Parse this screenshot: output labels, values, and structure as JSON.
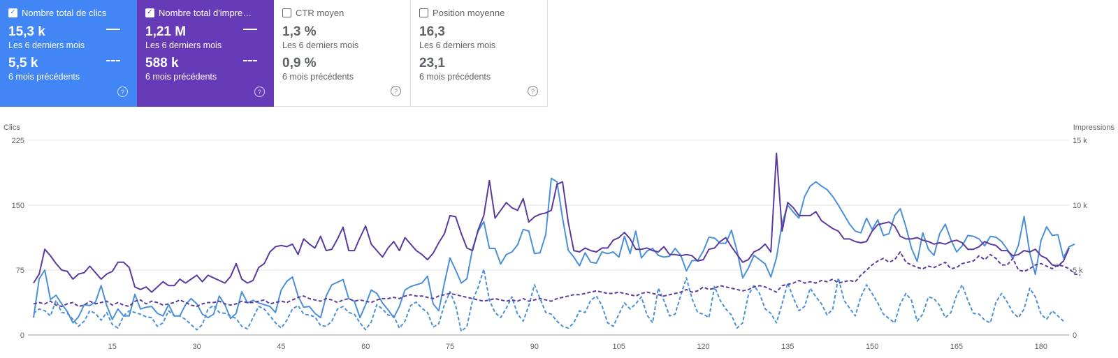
{
  "cards": [
    {
      "title": "Nombre total de clics",
      "checked": true,
      "value1": "15,3 k",
      "label1": "Les 6 derniers mois",
      "value2": "5,5 k",
      "label2": "6 mois précédents",
      "help": "?",
      "theme": "#4285f4"
    },
    {
      "title": "Nombre total d'impre…",
      "checked": true,
      "value1": "1,21 M",
      "label1": "Les 6 derniers mois",
      "value2": "588 k",
      "label2": "6 mois précédents",
      "help": "?",
      "theme": "#673ab7"
    },
    {
      "title": "CTR moyen",
      "checked": false,
      "value1": "1,3 %",
      "label1": "Les 6 derniers mois",
      "value2": "0,9 %",
      "label2": "6 mois précédents",
      "help": "?",
      "theme": "#ffffff"
    },
    {
      "title": "Position moyenne",
      "checked": false,
      "value1": "16,3",
      "label1": "Les 6 derniers mois",
      "value2": "23,1",
      "label2": "6 mois précédents",
      "help": "?",
      "theme": "#ffffff"
    }
  ],
  "chart_data": {
    "type": "line",
    "left_axis_label": "Clics",
    "right_axis_label": "Impressions",
    "left_ticks": [
      "0",
      "75",
      "150",
      "225"
    ],
    "right_ticks": [
      "0",
      "5 k",
      "10 k",
      "15 k"
    ],
    "x_ticks": [
      "15",
      "30",
      "45",
      "60",
      "75",
      "90",
      "105",
      "120",
      "135",
      "150",
      "165",
      "180"
    ],
    "ylim_left": [
      0,
      225
    ],
    "ylim_right": [
      0,
      15000
    ],
    "x_range": [
      1,
      184
    ],
    "colors": {
      "clicks": "#4a90d9",
      "impressions": "#5b3a9e"
    },
    "series": [
      {
        "axis": "left",
        "dashed": false,
        "color": "#4a90d9",
        "values": [
          20,
          65,
          75,
          41,
          46,
          36,
          27,
          14,
          21,
          35,
          34,
          38,
          57,
          34,
          18,
          30,
          22,
          22,
          47,
          30,
          32,
          33,
          25,
          22,
          35,
          22,
          22,
          35,
          42,
          36,
          24,
          20,
          24,
          45,
          35,
          19,
          25,
          50,
          37,
          40,
          37,
          35,
          33,
          26,
          52,
          62,
          67,
          45,
          32,
          33,
          25,
          20,
          45,
          58,
          61,
          64,
          42,
          39,
          20,
          35,
          52,
          48,
          37,
          29,
          20,
          33,
          52,
          56,
          58,
          60,
          68,
          36,
          28,
          60,
          89,
          75,
          60,
          65,
          100,
          120,
          131,
          100,
          100,
          82,
          93,
          96,
          104,
          122,
          120,
          94,
          95,
          116,
          181,
          177,
          135,
          98,
          90,
          80,
          95,
          84,
          83,
          96,
          94,
          96,
          90,
          114,
          94,
          120,
          89,
          97,
          100,
          92,
          90,
          91,
          100,
          92,
          74,
          86,
          86,
          97,
          113,
          112,
          106,
          106,
          121,
          97,
          66,
          77,
          92,
          87,
          82,
          67,
          89,
          129,
          150,
          142,
          135,
          160,
          172,
          177,
          172,
          168,
          160,
          150,
          139,
          128,
          120,
          118,
          135,
          122,
          133,
          115,
          117,
          138,
          146,
          125,
          100,
          85,
          118,
          99,
          92,
          117,
          128,
          110,
          96,
          103,
          115,
          114,
          111,
          103,
          114,
          113,
          108,
          99,
          88,
          104,
          137,
          95,
          70,
          109,
          125,
          115,
          116,
          89,
          102,
          105
        ]
      },
      {
        "axis": "right",
        "dashed": false,
        "color": "#5b3a9e",
        "values": [
          4000,
          4700,
          6600,
          6100,
          5500,
          5000,
          4900,
          4300,
          4700,
          4800,
          5300,
          4800,
          4300,
          4700,
          4900,
          5600,
          5600,
          5200,
          3700,
          3500,
          3700,
          3300,
          3700,
          4100,
          3800,
          3800,
          4300,
          4000,
          4300,
          4600,
          4100,
          4600,
          4400,
          4200,
          4000,
          4500,
          5500,
          4300,
          4000,
          4200,
          5200,
          5500,
          6400,
          6800,
          6900,
          6800,
          7000,
          6200,
          7400,
          7000,
          6700,
          7600,
          6500,
          6600,
          7400,
          8300,
          6500,
          6500,
          7500,
          8400,
          7000,
          6500,
          6000,
          6700,
          7200,
          6500,
          7500,
          7000,
          6500,
          6200,
          5800,
          6300,
          7100,
          7800,
          9200,
          9100,
          7800,
          6700,
          6500,
          8100,
          9200,
          11900,
          9000,
          9600,
          10200,
          9800,
          9600,
          10500,
          8700,
          9100,
          9300,
          9400,
          9600,
          11600,
          11800,
          8700,
          6500,
          6400,
          6700,
          6500,
          6400,
          6700,
          6700,
          7300,
          7500,
          7900,
          7400,
          6600,
          6600,
          6700,
          6500,
          6400,
          6800,
          6200,
          6200,
          6100,
          6200,
          6100,
          5700,
          5800,
          6600,
          6700,
          7200,
          7500,
          6800,
          6200,
          5600,
          5800,
          6400,
          6600,
          7000,
          6400,
          14000,
          8000,
          10200,
          9800,
          9200,
          9200,
          9200,
          9500,
          8800,
          8500,
          8200,
          8000,
          7400,
          7400,
          7200,
          7100,
          7200,
          8000,
          8500,
          8600,
          8700,
          8400,
          7600,
          7400,
          7400,
          7500,
          7300,
          7200,
          7000,
          7100,
          7000,
          7200,
          7300,
          7100,
          6600,
          6600,
          6800,
          7200,
          7000,
          6900,
          6500,
          6500,
          6100,
          6200,
          6500,
          6400,
          6600,
          6100,
          5900,
          5400,
          5300,
          5700,
          6700
        ]
      },
      {
        "axis": "left",
        "dashed": true,
        "color": "#4a90d9",
        "values": [
          25,
          30,
          28,
          22,
          40,
          26,
          25,
          18,
          10,
          16,
          28,
          25,
          17,
          26,
          12,
          8,
          22,
          28,
          26,
          24,
          21,
          20,
          10,
          14,
          28,
          22,
          22,
          18,
          12,
          6,
          12,
          30,
          34,
          26,
          25,
          22,
          19,
          10,
          7,
          20,
          33,
          30,
          22,
          14,
          8,
          17,
          30,
          34,
          24,
          23,
          21,
          11,
          10,
          16,
          30,
          33,
          26,
          24,
          14,
          6,
          15,
          35,
          30,
          23,
          22,
          8,
          16,
          34,
          38,
          31,
          26,
          9,
          13,
          35,
          50,
          34,
          4,
          10,
          40,
          55,
          76,
          40,
          26,
          20,
          31,
          44,
          24,
          16,
          34,
          58,
          42,
          26,
          24,
          16,
          10,
          8,
          14,
          28,
          26,
          40,
          45,
          34,
          14,
          10,
          24,
          37,
          30,
          36,
          44,
          23,
          14,
          54,
          40,
          22,
          24,
          46,
          66,
          42,
          26,
          24,
          20,
          56,
          40,
          30,
          23,
          8,
          14,
          46,
          57,
          48,
          30,
          25,
          14,
          36,
          60,
          43,
          28,
          33,
          54,
          44,
          36,
          23,
          30,
          66,
          40,
          31,
          22,
          44,
          58,
          48,
          37,
          24,
          19,
          14,
          36,
          48,
          40,
          16,
          24,
          44,
          42,
          34,
          20,
          26,
          46,
          58,
          40,
          25,
          24,
          17,
          14,
          38,
          48,
          38,
          26,
          20,
          30,
          54,
          44,
          24,
          18,
          28,
          22,
          16
        ]
      },
      {
        "axis": "right",
        "dashed": true,
        "color": "#5b3a9e",
        "values": [
          2400,
          2500,
          2400,
          2600,
          2300,
          2200,
          2400,
          2500,
          2200,
          2300,
          2600,
          2400,
          2500,
          2600,
          2300,
          2500,
          2300,
          2200,
          2600,
          2700,
          2400,
          2600,
          2500,
          2300,
          2400,
          2500,
          2700,
          2500,
          2300,
          2200,
          2400,
          2500,
          2500,
          2600,
          2400,
          2300,
          2400,
          2600,
          2500,
          2500,
          2600,
          2700,
          2400,
          2500,
          2600,
          2500,
          2700,
          2900,
          3000,
          2800,
          2700,
          2600,
          2800,
          2700,
          2500,
          2700,
          2800,
          2600,
          2700,
          2600,
          2500,
          2700,
          2800,
          2800,
          2900,
          2800,
          3000,
          3100,
          3000,
          3000,
          2900,
          2800,
          3000,
          3100,
          3200,
          3100,
          3000,
          2900,
          2800,
          2700,
          2600,
          2700,
          2800,
          2700,
          2600,
          2700,
          2600,
          2800,
          2600,
          2700,
          2800,
          2700,
          2600,
          2800,
          2900,
          3000,
          3100,
          3100,
          3200,
          3300,
          3400,
          3300,
          3200,
          3200,
          3300,
          3200,
          3100,
          3000,
          3200,
          3300,
          3200,
          3100,
          3000,
          3100,
          3200,
          3300,
          3500,
          3300,
          3400,
          3700,
          3500,
          3600,
          3800,
          3700,
          3600,
          3500,
          3400,
          3500,
          3700,
          3800,
          3700,
          3500,
          3300,
          3800,
          3900,
          4000,
          4200,
          4000,
          4100,
          4000,
          4200,
          4100,
          4300,
          4000,
          4100,
          4200,
          4100,
          4600,
          5000,
          5400,
          5700,
          5900,
          5600,
          5800,
          6400,
          5600,
          5400,
          5200,
          5100,
          5300,
          5200,
          5400,
          5600,
          5100,
          5200,
          5500,
          5600,
          5700,
          6100,
          5800,
          6200,
          5900,
          5400,
          5400,
          5900,
          5000,
          4900,
          5100,
          5400,
          5500,
          5300,
          5100,
          5400,
          5300,
          5100,
          4700,
          4600
        ]
      }
    ]
  }
}
